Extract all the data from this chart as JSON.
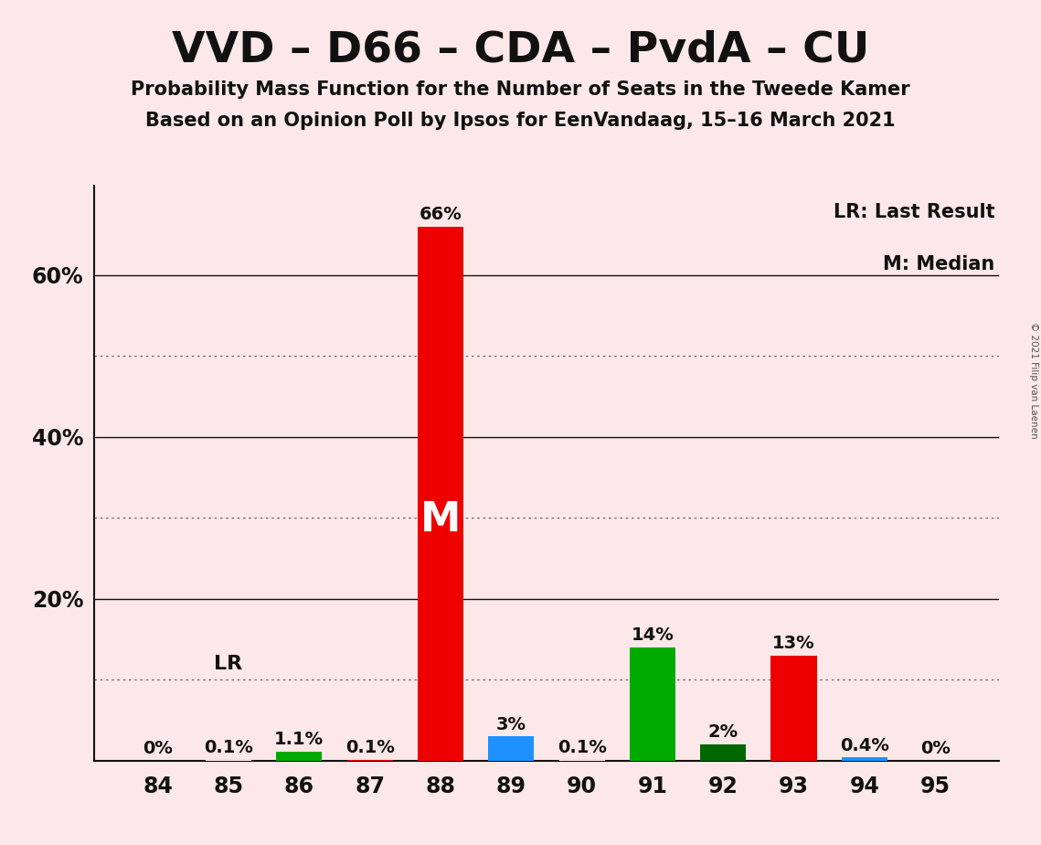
{
  "title": "VVD – D66 – CDA – PvdA – CU",
  "subtitle1": "Probability Mass Function for the Number of Seats in the Tweede Kamer",
  "subtitle2": "Based on an Opinion Poll by Ipsos for EenVandaag, 15–16 March 2021",
  "copyright": "© 2021 Filip van Laenen",
  "categories": [
    84,
    85,
    86,
    87,
    88,
    89,
    90,
    91,
    92,
    93,
    94,
    95
  ],
  "values": [
    0.0,
    0.1,
    1.1,
    0.1,
    66.0,
    3.0,
    0.1,
    14.0,
    2.0,
    13.0,
    0.4,
    0.0
  ],
  "bar_colors": [
    "#fce8e8",
    "#fce8e8",
    "#00aa00",
    "#ee0000",
    "#ee0000",
    "#1e90ff",
    "#fce8e8",
    "#00aa00",
    "#006600",
    "#ee0000",
    "#1e90ff",
    "#fce8e8"
  ],
  "labels": [
    "0%",
    "0.1%",
    "1.1%",
    "0.1%",
    "66%",
    "3%",
    "0.1%",
    "14%",
    "2%",
    "13%",
    "0.4%",
    "0%"
  ],
  "median_bar_idx": 4,
  "lr_bar_idx": 1,
  "background_color": "#fce8e8",
  "ylim": [
    0,
    71
  ],
  "legend_text1": "LR: Last Result",
  "legend_text2": "M: Median"
}
